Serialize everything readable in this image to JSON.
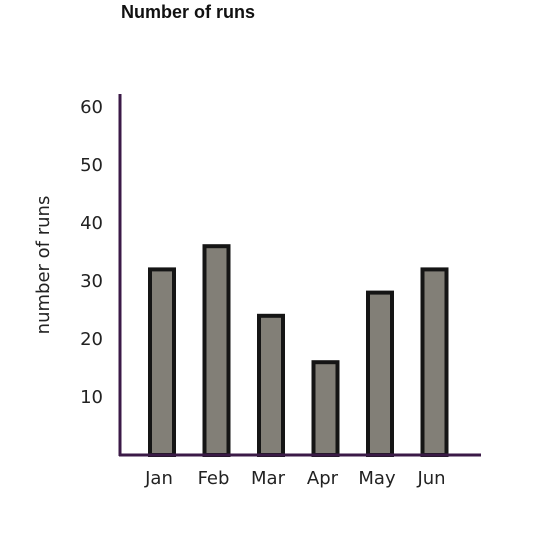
{
  "chart_data": {
    "type": "bar",
    "title": "Number of runs",
    "xlabel": "",
    "ylabel": "number of runs",
    "categories": [
      "Jan",
      "Feb",
      "Mar",
      "Apr",
      "May",
      "Jun"
    ],
    "values": [
      32,
      36,
      24,
      16,
      28,
      32
    ],
    "ylim": [
      0,
      63
    ],
    "yticks": [
      10,
      20,
      30,
      40,
      50,
      60
    ],
    "grid": false,
    "colors": {
      "bar_fill": "#827f77",
      "bar_stroke": "#151515",
      "axis": "#3b1a47",
      "text": "#222222"
    }
  }
}
